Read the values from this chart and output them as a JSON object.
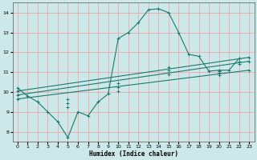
{
  "bg_color": "#cce8e8",
  "grid_color": "#e8b0b0",
  "line_color": "#1a7a6e",
  "xlabel": "Humidex (Indice chaleur)",
  "xlim": [
    -0.5,
    23.5
  ],
  "ylim": [
    7.5,
    14.5
  ],
  "xticks": [
    0,
    1,
    2,
    3,
    4,
    5,
    6,
    7,
    8,
    9,
    10,
    11,
    12,
    13,
    14,
    15,
    16,
    17,
    18,
    19,
    20,
    21,
    22,
    23
  ],
  "yticks": [
    8,
    9,
    10,
    11,
    12,
    13,
    14
  ],
  "zigzag_x": [
    0,
    1,
    2,
    3,
    4,
    5,
    6,
    7,
    8,
    9,
    10,
    11,
    12,
    13,
    14,
    15,
    16,
    17,
    18,
    19,
    20,
    21,
    22
  ],
  "zigzag_y": [
    10.2,
    9.8,
    9.5,
    9.0,
    8.5,
    7.7,
    9.0,
    8.8,
    9.5,
    9.9,
    12.7,
    13.0,
    13.5,
    14.15,
    14.2,
    14.0,
    13.0,
    11.9,
    11.8,
    11.05,
    11.1,
    11.1,
    11.7
  ],
  "line1_x": [
    0,
    23
  ],
  "line1_y": [
    10.05,
    11.75
  ],
  "line2_x": [
    0,
    23
  ],
  "line2_y": [
    9.85,
    11.55
  ],
  "line3_x": [
    0,
    23
  ],
  "line3_y": [
    9.65,
    11.1
  ],
  "marker_x1": [
    0,
    5,
    10,
    15,
    20,
    22,
    23
  ],
  "marker_y1": [
    10.05,
    9.65,
    10.45,
    11.25,
    11.05,
    11.7,
    11.75
  ],
  "marker_x2": [
    0,
    5,
    10,
    15,
    20,
    22,
    23
  ],
  "marker_y2": [
    9.85,
    9.45,
    10.25,
    11.1,
    10.95,
    11.55,
    11.55
  ],
  "marker_x3": [
    0,
    5,
    10,
    15,
    20,
    22,
    23
  ],
  "marker_y3": [
    9.65,
    9.25,
    10.05,
    10.9,
    10.85,
    11.4,
    11.1
  ]
}
